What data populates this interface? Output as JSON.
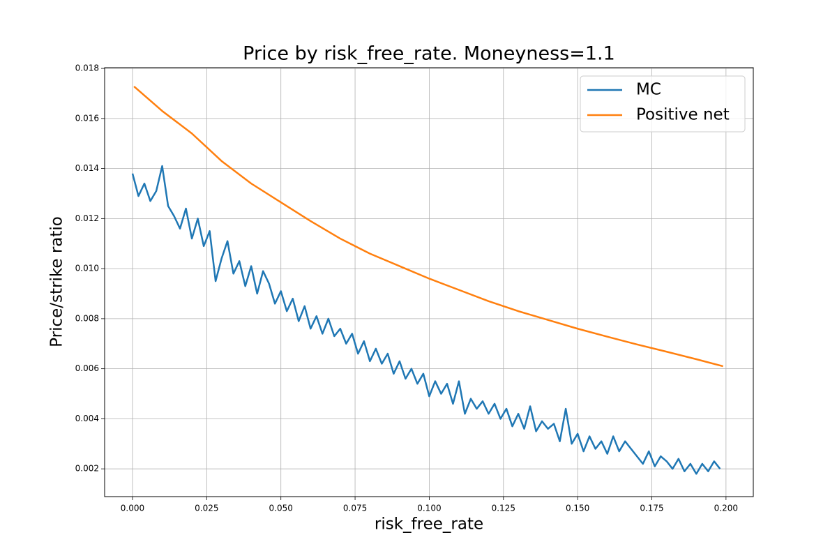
{
  "chart_data": {
    "type": "line",
    "title": "Price by risk_free_rate. Moneyness=1.1",
    "xlabel": "risk_free_rate",
    "ylabel": "Price/strike ratio",
    "xlim": [
      -0.0094,
      0.2092
    ],
    "ylim": [
      0.00089,
      0.01803
    ],
    "xticks": [
      {
        "value": 0,
        "label": "0.000"
      },
      0.025,
      {
        "value": 0.05,
        "label": "0.050"
      },
      0.075,
      {
        "value": 0.1,
        "label": "0.100"
      },
      0.125,
      {
        "value": 0.15,
        "label": "0.150"
      },
      0.175,
      {
        "value": 0.2,
        "label": "0.200"
      }
    ],
    "yticks": [
      0.002,
      0.004,
      0.006,
      0.008,
      {
        "value": 0.01,
        "label": "0.010"
      },
      0.012,
      0.014,
      0.016,
      0.018
    ],
    "grid": true,
    "legend": "upper right",
    "series": [
      {
        "name": "MC",
        "color": "#1f77b4",
        "x": [
          0.0,
          0.002,
          0.004,
          0.006,
          0.008,
          0.01,
          0.012,
          0.014,
          0.016,
          0.018,
          0.02,
          0.022,
          0.024,
          0.026,
          0.028,
          0.03,
          0.032,
          0.034,
          0.036,
          0.038,
          0.04,
          0.042,
          0.044,
          0.046,
          0.048,
          0.05,
          0.052,
          0.054,
          0.056,
          0.058,
          0.06,
          0.062,
          0.064,
          0.066,
          0.068,
          0.07,
          0.072,
          0.074,
          0.076,
          0.078,
          0.08,
          0.082,
          0.084,
          0.086,
          0.088,
          0.09,
          0.092,
          0.094,
          0.096,
          0.098,
          0.1,
          0.102,
          0.104,
          0.106,
          0.108,
          0.11,
          0.112,
          0.114,
          0.116,
          0.118,
          0.12,
          0.122,
          0.124,
          0.126,
          0.128,
          0.13,
          0.132,
          0.134,
          0.136,
          0.138,
          0.14,
          0.142,
          0.144,
          0.146,
          0.148,
          0.15,
          0.152,
          0.154,
          0.156,
          0.158,
          0.16,
          0.162,
          0.164,
          0.166,
          0.168,
          0.17,
          0.172,
          0.174,
          0.176,
          0.178,
          0.18,
          0.182,
          0.184,
          0.186,
          0.188,
          0.19,
          0.192,
          0.194,
          0.196,
          0.198
        ],
        "values": [
          0.0138,
          0.0129,
          0.0134,
          0.0127,
          0.0131,
          0.0141,
          0.0125,
          0.0121,
          0.0116,
          0.0124,
          0.0112,
          0.012,
          0.0109,
          0.0115,
          0.0095,
          0.0104,
          0.0111,
          0.0098,
          0.0103,
          0.0093,
          0.0101,
          0.009,
          0.0099,
          0.0094,
          0.0086,
          0.0091,
          0.0083,
          0.0088,
          0.0079,
          0.0085,
          0.0076,
          0.0081,
          0.0074,
          0.008,
          0.0073,
          0.0076,
          0.007,
          0.0074,
          0.0066,
          0.0071,
          0.0063,
          0.0068,
          0.0062,
          0.0066,
          0.0058,
          0.0063,
          0.0056,
          0.006,
          0.0054,
          0.0058,
          0.0049,
          0.0055,
          0.005,
          0.0054,
          0.0046,
          0.0055,
          0.0042,
          0.0048,
          0.0044,
          0.0047,
          0.0042,
          0.0046,
          0.004,
          0.0044,
          0.0037,
          0.0042,
          0.0036,
          0.0045,
          0.0035,
          0.0039,
          0.0036,
          0.0038,
          0.0031,
          0.0044,
          0.003,
          0.0034,
          0.0027,
          0.0033,
          0.0028,
          0.0031,
          0.0026,
          0.0033,
          0.0027,
          0.0031,
          0.0028,
          0.0025,
          0.0022,
          0.0027,
          0.0021,
          0.0025,
          0.0023,
          0.002,
          0.0024,
          0.0019,
          0.0022,
          0.0018,
          0.0022,
          0.0019,
          0.0023,
          0.002
        ]
      },
      {
        "name": "Positive net",
        "color": "#ff7f0e",
        "x": [
          0.0005,
          0.01,
          0.02,
          0.03,
          0.04,
          0.05,
          0.06,
          0.07,
          0.08,
          0.09,
          0.1,
          0.11,
          0.12,
          0.13,
          0.14,
          0.15,
          0.16,
          0.17,
          0.18,
          0.19,
          0.199
        ],
        "values": [
          0.01728,
          0.0163,
          0.0154,
          0.0143,
          0.0134,
          0.01265,
          0.0119,
          0.0112,
          0.0106,
          0.0101,
          0.0096,
          0.00915,
          0.0087,
          0.0083,
          0.00795,
          0.0076,
          0.00728,
          0.00697,
          0.00668,
          0.00638,
          0.0061
        ]
      }
    ]
  }
}
